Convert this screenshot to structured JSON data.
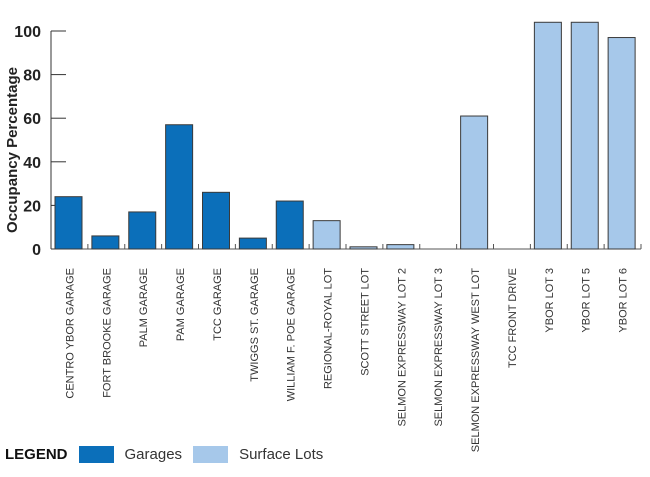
{
  "chart_data": {
    "type": "bar",
    "title": "",
    "xlabel": "",
    "ylabel": "Occupancy Percentage",
    "ylim": [
      0,
      100
    ],
    "yticks": [
      0,
      20,
      40,
      60,
      80,
      100
    ],
    "grid": false,
    "categories": [
      "CENTRO YBOR GARAGE",
      "FORT BROOKE GARAGE",
      "PALM GARAGE",
      "PAM GARAGE",
      "TCC  GARAGE",
      "TWIGGS ST. GARAGE",
      "WILLIAM F. POE  GARAGE",
      "REGIONAL-ROYAL LOT",
      "SCOTT STREET LOT",
      "SELMON EXPRESSWAY LOT 2",
      "SELMON EXPRESSWAY LOT 3",
      "SELMON EXPRESSWAY WEST LOT",
      "TCC FRONT DRIVE",
      "YBOR LOT 3",
      "YBOR LOT 5",
      "YBOR LOT 6"
    ],
    "values": [
      24,
      6,
      17,
      57,
      26,
      5,
      22,
      13,
      1,
      2,
      0,
      61,
      0,
      104,
      104,
      97
    ],
    "groups": [
      "Garages",
      "Garages",
      "Garages",
      "Garages",
      "Garages",
      "Garages",
      "Garages",
      "Surface Lots",
      "Surface Lots",
      "Surface Lots",
      "Surface Lots",
      "Surface Lots",
      "Surface Lots",
      "Surface Lots",
      "Surface Lots",
      "Surface Lots"
    ],
    "legend": {
      "title": "LEGEND",
      "placement": "bottom-left",
      "entries": [
        {
          "name": "Garages",
          "color": "#0b6fba"
        },
        {
          "name": "Surface Lots",
          "color": "#a6c8ea"
        }
      ]
    }
  }
}
